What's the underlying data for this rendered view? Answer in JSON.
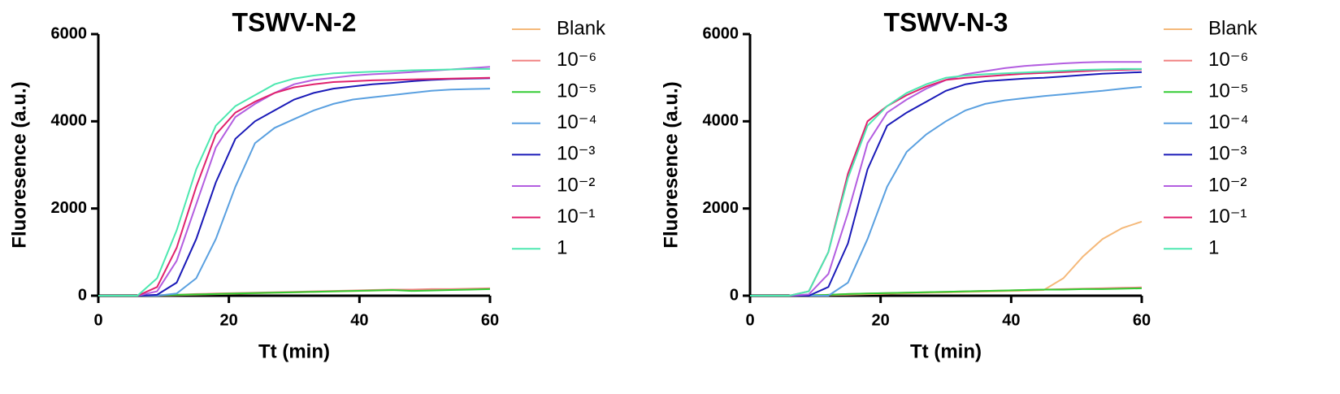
{
  "chart_data": [
    {
      "type": "line",
      "title": "TSWV-N-2",
      "x_label": "Tt (min)",
      "y_label": "Fluoresence (a.u.)",
      "xlim": [
        0,
        60
      ],
      "xticks": [
        0,
        20,
        40,
        60
      ],
      "ylim": [
        0,
        6000
      ],
      "yticks": [
        0,
        2000,
        4000,
        6000
      ],
      "x": [
        0,
        3,
        6,
        9,
        12,
        15,
        18,
        21,
        24,
        27,
        30,
        33,
        36,
        39,
        42,
        45,
        48,
        51,
        54,
        57,
        60
      ],
      "series": [
        {
          "name": "Blank",
          "color": "#f5b97a",
          "values": [
            0,
            0,
            0,
            5,
            15,
            25,
            35,
            45,
            55,
            65,
            75,
            85,
            95,
            105,
            115,
            125,
            135,
            140,
            145,
            150,
            160
          ]
        },
        {
          "name": "10⁻⁶",
          "color": "#f08080",
          "values": [
            0,
            0,
            0,
            10,
            20,
            40,
            50,
            60,
            70,
            80,
            90,
            100,
            110,
            120,
            130,
            140,
            140,
            150,
            150,
            160,
            170
          ]
        },
        {
          "name": "10⁻⁵",
          "color": "#33cc33",
          "values": [
            0,
            0,
            0,
            10,
            20,
            30,
            40,
            50,
            60,
            70,
            80,
            90,
            100,
            110,
            120,
            130,
            110,
            120,
            130,
            140,
            150
          ]
        },
        {
          "name": "10⁻⁴",
          "color": "#5aa0e0",
          "values": [
            0,
            0,
            0,
            0,
            50,
            400,
            1300,
            2500,
            3500,
            3850,
            4050,
            4250,
            4400,
            4500,
            4550,
            4600,
            4650,
            4700,
            4730,
            4740,
            4750
          ]
        },
        {
          "name": "10⁻³",
          "color": "#1a1ab8",
          "values": [
            0,
            0,
            0,
            20,
            300,
            1300,
            2600,
            3600,
            4000,
            4250,
            4500,
            4650,
            4750,
            4800,
            4850,
            4880,
            4920,
            4950,
            4970,
            4980,
            4990
          ]
        },
        {
          "name": "10⁻²",
          "color": "#b35ee0",
          "values": [
            0,
            0,
            0,
            100,
            800,
            2100,
            3400,
            4100,
            4400,
            4650,
            4850,
            4950,
            5000,
            5050,
            5080,
            5100,
            5130,
            5160,
            5190,
            5220,
            5250
          ]
        },
        {
          "name": "10⁻¹",
          "color": "#e0226e",
          "values": [
            0,
            0,
            0,
            200,
            1100,
            2500,
            3700,
            4200,
            4450,
            4650,
            4780,
            4850,
            4900,
            4920,
            4940,
            4950,
            4960,
            4970,
            4980,
            4990,
            5000
          ]
        },
        {
          "name": "1",
          "color": "#4de8b0",
          "values": [
            0,
            0,
            0,
            400,
            1500,
            2900,
            3900,
            4350,
            4600,
            4850,
            4980,
            5050,
            5100,
            5120,
            5140,
            5150,
            5170,
            5180,
            5190,
            5200,
            5200
          ]
        }
      ]
    },
    {
      "type": "line",
      "title": "TSWV-N-3",
      "x_label": "Tt (min)",
      "y_label": "Fluoresence (a.u.)",
      "xlim": [
        0,
        60
      ],
      "xticks": [
        0,
        20,
        40,
        60
      ],
      "ylim": [
        0,
        6000
      ],
      "yticks": [
        0,
        2000,
        4000,
        6000
      ],
      "x": [
        0,
        3,
        6,
        9,
        12,
        15,
        18,
        21,
        24,
        27,
        30,
        33,
        36,
        39,
        42,
        45,
        48,
        51,
        54,
        57,
        60
      ],
      "series": [
        {
          "name": "Blank",
          "color": "#f5b97a",
          "values": [
            0,
            0,
            0,
            5,
            15,
            25,
            35,
            45,
            55,
            65,
            75,
            85,
            95,
            105,
            115,
            130,
            400,
            900,
            1300,
            1550,
            1700
          ]
        },
        {
          "name": "10⁻⁶",
          "color": "#f08080",
          "values": [
            0,
            0,
            0,
            10,
            20,
            40,
            50,
            60,
            70,
            80,
            90,
            100,
            110,
            120,
            130,
            140,
            150,
            160,
            170,
            180,
            190
          ]
        },
        {
          "name": "10⁻⁵",
          "color": "#33cc33",
          "values": [
            0,
            0,
            0,
            10,
            20,
            40,
            50,
            60,
            70,
            80,
            90,
            100,
            110,
            120,
            130,
            140,
            140,
            150,
            150,
            160,
            170
          ]
        },
        {
          "name": "10⁻⁴",
          "color": "#5aa0e0",
          "values": [
            0,
            0,
            0,
            0,
            0,
            300,
            1300,
            2500,
            3300,
            3700,
            4000,
            4250,
            4400,
            4480,
            4530,
            4580,
            4620,
            4660,
            4700,
            4750,
            4790
          ]
        },
        {
          "name": "10⁻³",
          "color": "#1a1ab8",
          "values": [
            0,
            0,
            0,
            0,
            200,
            1200,
            2900,
            3900,
            4200,
            4450,
            4700,
            4850,
            4920,
            4950,
            4980,
            5000,
            5030,
            5060,
            5090,
            5110,
            5130
          ]
        },
        {
          "name": "10⁻²",
          "color": "#b35ee0",
          "values": [
            0,
            0,
            0,
            30,
            500,
            1900,
            3500,
            4200,
            4500,
            4750,
            4950,
            5080,
            5150,
            5220,
            5270,
            5300,
            5330,
            5350,
            5360,
            5360,
            5360
          ]
        },
        {
          "name": "10⁻¹",
          "color": "#e0226e",
          "values": [
            0,
            0,
            0,
            100,
            1000,
            2800,
            4000,
            4350,
            4600,
            4800,
            4950,
            5000,
            5030,
            5060,
            5090,
            5110,
            5130,
            5150,
            5170,
            5180,
            5190
          ]
        },
        {
          "name": "1",
          "color": "#4de8b0",
          "values": [
            0,
            0,
            0,
            100,
            1000,
            2700,
            3900,
            4350,
            4650,
            4850,
            5000,
            5050,
            5080,
            5100,
            5120,
            5140,
            5160,
            5180,
            5190,
            5200,
            5200
          ]
        }
      ]
    }
  ]
}
